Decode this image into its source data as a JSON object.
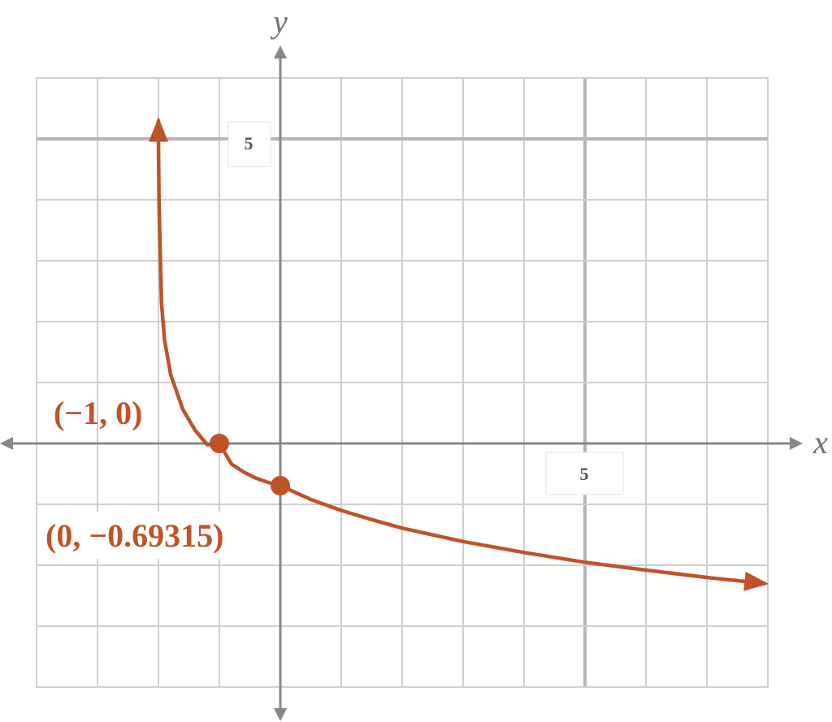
{
  "chart_data": {
    "type": "line",
    "title": "",
    "xlabel": "x",
    "ylabel": "y",
    "xlim": [
      -4,
      8
    ],
    "ylim": [
      -4,
      6
    ],
    "grid": true,
    "major_ticks": {
      "x": 5,
      "y": 5
    },
    "x_tick_label": "5",
    "y_tick_label": "5",
    "series": [
      {
        "color": "#C0522A",
        "asymptote_x": -2,
        "x": [
          -1.9999,
          -1.999,
          -1.99,
          -1.95,
          -1.9,
          -1.8,
          -1.6,
          -1.4,
          -1.2,
          -1.0,
          -0.8,
          -0.6,
          -0.4,
          -0.2,
          0,
          0.5,
          1,
          1.5,
          2,
          3,
          4,
          5,
          6,
          7,
          7.95
        ],
        "y": [
          5.3,
          4.8,
          3.9,
          2.3,
          1.7,
          1.13,
          0.56,
          0.22,
          -0.02,
          0,
          -0.34,
          -0.47,
          -0.57,
          -0.64,
          -0.69315,
          -0.92,
          -1.1,
          -1.25,
          -1.39,
          -1.61,
          -1.79,
          -1.95,
          -2.08,
          -2.2,
          -2.3
        ]
      }
    ],
    "points": [
      {
        "x": -1,
        "y": 0,
        "label": "(−1, 0)"
      },
      {
        "x": 0,
        "y": -0.69315,
        "label": "(0, −0.69315)"
      }
    ]
  }
}
